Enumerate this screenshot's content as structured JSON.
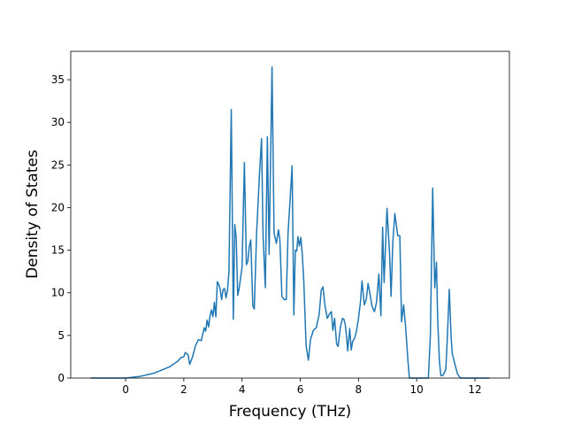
{
  "chart_data": {
    "type": "line",
    "xlabel": "Frequency (THz)",
    "ylabel": "Density of States",
    "xlim": [
      -1.885,
      13.185
    ],
    "ylim": [
      0,
      38.33
    ],
    "xticks": [
      0,
      2,
      4,
      6,
      8,
      10,
      12
    ],
    "yticks": [
      0,
      5,
      10,
      15,
      20,
      25,
      30,
      35
    ],
    "series": [
      {
        "color": "#1f77b4",
        "x": [
          -1.2,
          0,
          0.5,
          1,
          1.5,
          1.8,
          1.9,
          2.0,
          2.05,
          2.15,
          2.2,
          2.3,
          2.4,
          2.5,
          2.6,
          2.7,
          2.75,
          2.8,
          2.85,
          2.9,
          2.95,
          3.0,
          3.05,
          3.1,
          3.15,
          3.2,
          3.25,
          3.3,
          3.35,
          3.4,
          3.45,
          3.5,
          3.55,
          3.63,
          3.7,
          3.75,
          3.8,
          3.85,
          3.9,
          4.0,
          4.08,
          4.15,
          4.2,
          4.25,
          4.3,
          4.37,
          4.42,
          4.5,
          4.6,
          4.67,
          4.72,
          4.8,
          4.87,
          4.93,
          5.03,
          5.1,
          5.18,
          5.25,
          5.3,
          5.37,
          5.45,
          5.52,
          5.58,
          5.67,
          5.72,
          5.78,
          5.83,
          5.88,
          5.92,
          5.97,
          6.02,
          6.07,
          6.12,
          6.2,
          6.28,
          6.35,
          6.45,
          6.55,
          6.65,
          6.72,
          6.78,
          6.85,
          6.93,
          7.0,
          7.07,
          7.12,
          7.18,
          7.25,
          7.3,
          7.38,
          7.45,
          7.5,
          7.55,
          7.6,
          7.63,
          7.7,
          7.75,
          7.8,
          7.87,
          7.93,
          8.0,
          8.07,
          8.12,
          8.2,
          8.27,
          8.33,
          8.4,
          8.45,
          8.5,
          8.55,
          8.62,
          8.7,
          8.77,
          8.83,
          8.88,
          8.98,
          9.07,
          9.12,
          9.18,
          9.25,
          9.35,
          9.42,
          9.48,
          9.55,
          9.62,
          9.7,
          9.75,
          10.4,
          10.47,
          10.55,
          10.62,
          10.68,
          10.72,
          10.78,
          10.83,
          10.9,
          11.0,
          11.05,
          11.12,
          11.18,
          11.22,
          11.3,
          11.4,
          11.5,
          12.5
        ],
        "values": [
          0,
          0,
          0.2,
          0.6,
          1.3,
          2.0,
          2.4,
          2.5,
          3.0,
          2.7,
          1.6,
          2.5,
          3.8,
          4.5,
          4.4,
          5.9,
          5.5,
          6.8,
          6.0,
          7.3,
          8.0,
          7.2,
          8.9,
          7.2,
          11.3,
          11.0,
          10.4,
          9.2,
          10.4,
          10.5,
          9.4,
          10.3,
          12.5,
          31.5,
          6.9,
          18.0,
          16.5,
          9.7,
          10.5,
          13.0,
          25.3,
          13.3,
          13.7,
          15.5,
          16.2,
          8.5,
          8.1,
          17.0,
          24.0,
          28.1,
          17.0,
          10.6,
          28.3,
          14.5,
          36.5,
          17.0,
          15.8,
          17.4,
          16.2,
          9.6,
          9.2,
          9.2,
          17.0,
          22.0,
          24.9,
          7.4,
          15.0,
          14.9,
          16.6,
          15.5,
          16.5,
          14.5,
          11.5,
          3.8,
          2.1,
          4.5,
          5.6,
          5.9,
          7.5,
          10.3,
          10.7,
          8.5,
          7.0,
          7.5,
          7.8,
          5.6,
          7.0,
          4.0,
          3.7,
          6.0,
          7.0,
          6.9,
          6.2,
          4.5,
          3.2,
          5.8,
          3.3,
          4.3,
          4.7,
          5.5,
          7.0,
          9.0,
          11.4,
          8.6,
          9.3,
          11.1,
          9.8,
          8.7,
          8.1,
          7.8,
          8.9,
          12.2,
          7.3,
          17.7,
          11.2,
          19.9,
          14.5,
          9.6,
          15.9,
          19.3,
          16.7,
          16.7,
          6.6,
          8.6,
          6.0,
          2.0,
          0,
          0,
          5,
          22.3,
          10.6,
          13.6,
          7,
          2,
          0.3,
          0.3,
          1.0,
          4.5,
          10.4,
          5,
          2.9,
          1.8,
          0.5,
          0,
          0
        ]
      }
    ]
  }
}
